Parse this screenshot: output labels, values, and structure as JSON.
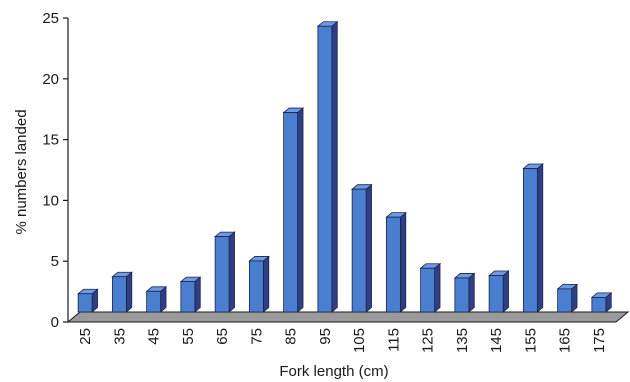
{
  "chart_data": {
    "type": "bar",
    "title": "",
    "xlabel": "Fork length (cm)",
    "ylabel": "% numbers landed",
    "categories": [
      "25",
      "35",
      "45",
      "55",
      "65",
      "75",
      "85",
      "95",
      "105",
      "115",
      "125",
      "135",
      "145",
      "155",
      "165",
      "175"
    ],
    "values": [
      1.5,
      2.9,
      1.7,
      2.5,
      6.2,
      4.2,
      16.4,
      23.5,
      10.1,
      7.8,
      3.6,
      2.8,
      3.0,
      11.8,
      1.9,
      1.2
    ],
    "ylim": [
      0,
      25
    ],
    "yticks": [
      "0",
      "5",
      "10",
      "15",
      "20",
      "25"
    ],
    "grid": false,
    "legend": "none",
    "colors": {
      "bar_front": "#4a7fd0",
      "bar_side": "#2e3f88",
      "bar_top": "#6d9ae4",
      "bar_edge": "#1d2347",
      "floor": "#9a9a9a",
      "axis": "#1a1a1a"
    }
  }
}
